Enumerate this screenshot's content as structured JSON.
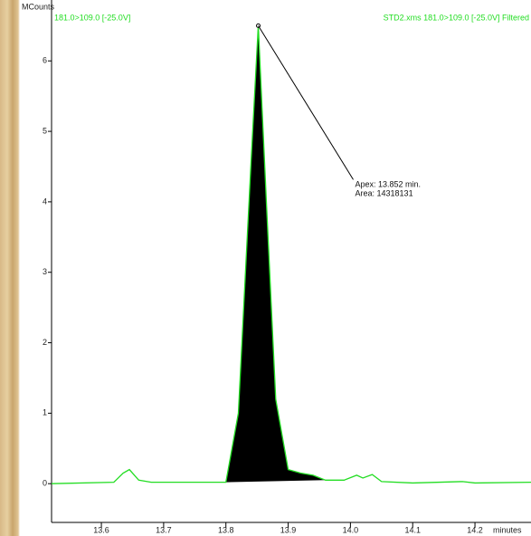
{
  "chart_data": {
    "type": "line",
    "y_unit": "MCounts",
    "x_label": "minutes",
    "trace_label": "181.0>109.0 [-25.0V]",
    "file_label": "STD2.xms 181.0>109.0 [-25.0V] Filtered",
    "annotation": [
      "Apex: 13.852 min.",
      "Area: 14318131"
    ],
    "x": [
      13.52,
      13.62,
      13.635,
      13.645,
      13.66,
      13.68,
      13.8,
      13.82,
      13.84,
      13.852,
      13.865,
      13.88,
      13.9,
      13.92,
      13.94,
      13.96,
      13.99,
      14.01,
      14.02,
      14.035,
      14.05,
      14.1,
      14.18,
      14.2,
      14.29
    ],
    "values": [
      0,
      0.02,
      0.15,
      0.2,
      0.05,
      0.02,
      0.02,
      1.0,
      4.5,
      6.5,
      4.0,
      1.2,
      0.2,
      0.15,
      0.12,
      0.05,
      0.05,
      0.12,
      0.08,
      0.13,
      0.03,
      0.01,
      0.03,
      0.01,
      0.02
    ],
    "color": "#22dd22",
    "peak_color": "#000000",
    "xlim": [
      13.52,
      14.29
    ],
    "ylim": [
      -0.55,
      6.8
    ],
    "xticks": [
      13.6,
      13.7,
      13.8,
      13.9,
      {
        "value": 14,
        "label": "14.0"
      },
      14.1,
      14.2
    ],
    "yticks": [
      0,
      1,
      2,
      3,
      4,
      5,
      6
    ]
  }
}
